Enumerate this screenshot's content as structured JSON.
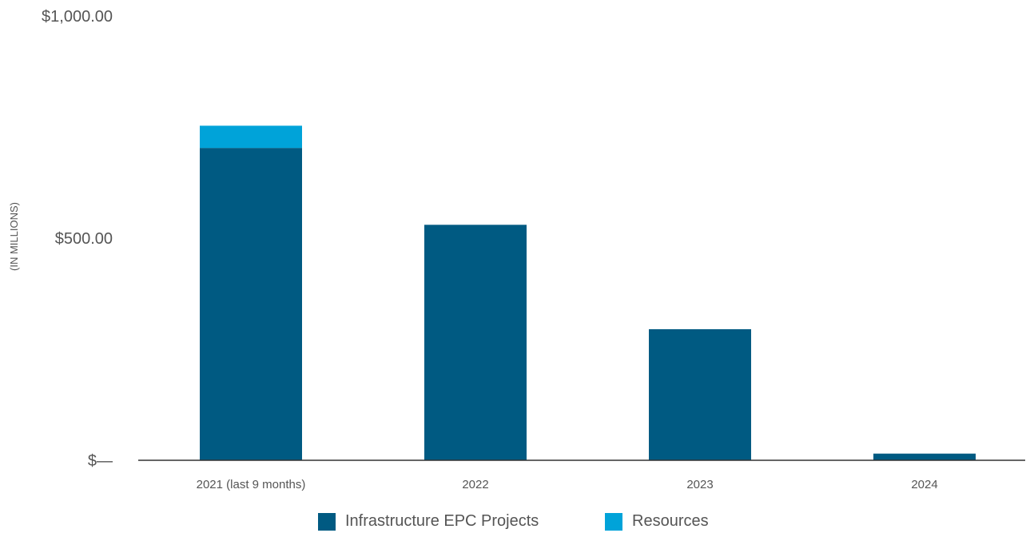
{
  "chart_data": {
    "type": "bar",
    "stacked": true,
    "title": "",
    "xlabel": "",
    "ylabel": "(IN MILLIONS)",
    "ylim": [
      0,
      1000
    ],
    "yticks": [
      {
        "value": 0,
        "label": "$—"
      },
      {
        "value": 500,
        "label": "$500.00"
      },
      {
        "value": 1000,
        "label": "$1,000.00"
      }
    ],
    "categories": [
      "2021 (last 9 months)",
      "2022",
      "2023",
      "2024"
    ],
    "series": [
      {
        "name": "Infrastructure EPC Projects",
        "color": "#005A82",
        "values": [
          703,
          530,
          295,
          15
        ]
      },
      {
        "name": "Resources",
        "color": "#00A3D9",
        "values": [
          50,
          0,
          0,
          0
        ]
      }
    ],
    "grid": false,
    "legend_position": "bottom-center"
  }
}
